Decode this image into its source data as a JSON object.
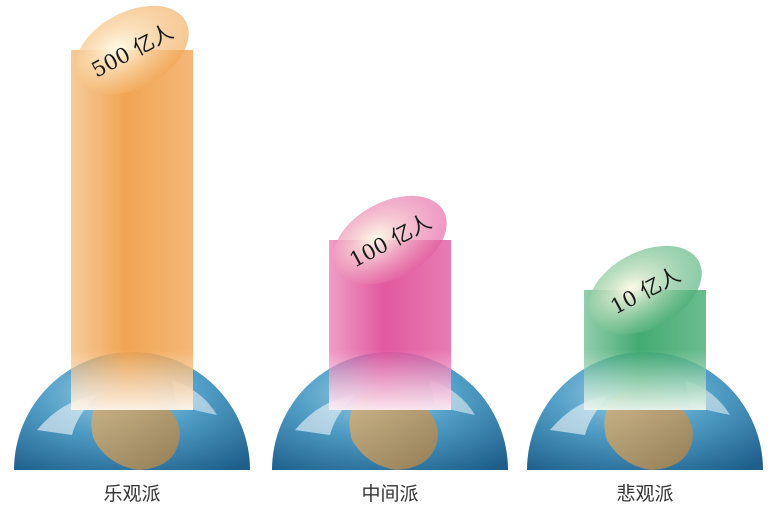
{
  "chart_data": {
    "type": "bar",
    "categories": [
      "乐观派",
      "中间派",
      "悲观派"
    ],
    "values": [
      500,
      100,
      10
    ],
    "value_labels": [
      "500 亿人",
      "100 亿人",
      "10 亿人"
    ],
    "series_colors": [
      "#f0a04a",
      "#e0509a",
      "#3aa66a"
    ],
    "title": "",
    "xlabel": "",
    "ylabel": ""
  }
}
